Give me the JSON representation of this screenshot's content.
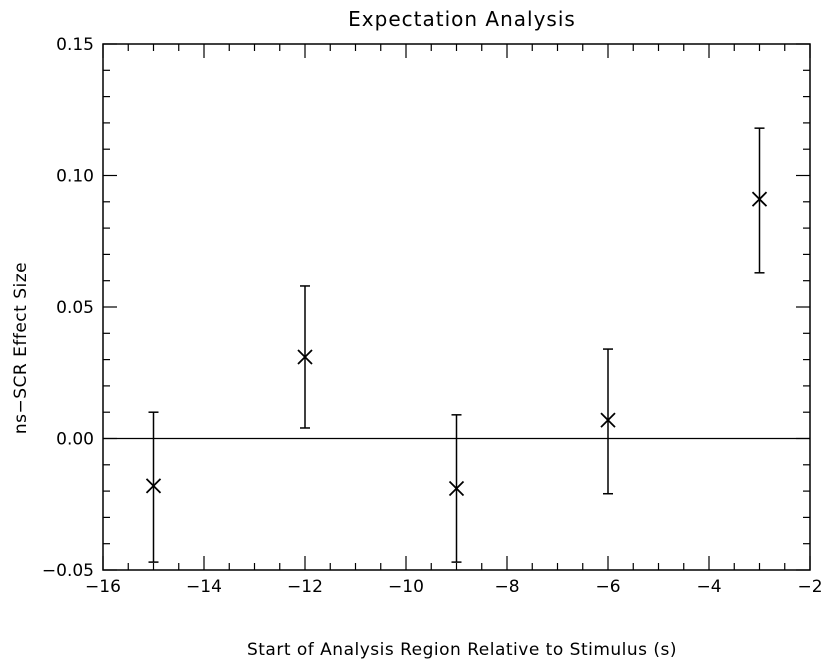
{
  "chart_data": {
    "type": "scatter",
    "title": "Expectation Analysis",
    "xlabel": "Start of Analysis Region Relative to Stimulus (s)",
    "ylabel": "ns−SCR Effect Size",
    "xlim": [
      -16,
      -2
    ],
    "ylim": [
      -0.05,
      0.15
    ],
    "x_ticks": [
      -16,
      -14,
      -12,
      -10,
      -8,
      -6,
      -4,
      -2
    ],
    "x_tick_labels": [
      "−16",
      "−14",
      "−12",
      "−10",
      "−8",
      "−6",
      "−4",
      "−2"
    ],
    "y_ticks": [
      -0.05,
      0.0,
      0.05,
      0.1,
      0.15
    ],
    "y_tick_labels": [
      "−0.05",
      "0.00",
      "0.05",
      "0.10",
      "0.15"
    ],
    "reference_line_y": 0.0,
    "marker": "x",
    "grid": false,
    "points": [
      {
        "x": -15,
        "y": -0.018,
        "err_low": -0.047,
        "err_high": 0.01
      },
      {
        "x": -12,
        "y": 0.031,
        "err_low": 0.004,
        "err_high": 0.058
      },
      {
        "x": -9,
        "y": -0.019,
        "err_low": -0.047,
        "err_high": 0.009
      },
      {
        "x": -6,
        "y": 0.007,
        "err_low": -0.021,
        "err_high": 0.034
      },
      {
        "x": -3,
        "y": 0.091,
        "err_low": 0.063,
        "err_high": 0.118
      }
    ]
  }
}
